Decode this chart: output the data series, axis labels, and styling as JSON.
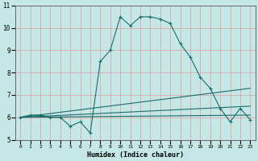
{
  "xlabel": "Humidex (Indice chaleur)",
  "bg_color": "#c5e8e6",
  "grid_color": "#dba8a8",
  "line_color": "#1a6b6b",
  "xlim": [
    -0.5,
    23.5
  ],
  "ylim": [
    5,
    11
  ],
  "yticks": [
    5,
    6,
    7,
    8,
    9,
    10,
    11
  ],
  "xticks": [
    0,
    1,
    2,
    3,
    4,
    5,
    6,
    7,
    8,
    9,
    10,
    11,
    12,
    13,
    14,
    15,
    16,
    17,
    18,
    19,
    20,
    21,
    22,
    23
  ],
  "main_series": {
    "x": [
      0,
      1,
      2,
      3,
      4,
      5,
      6,
      7,
      8,
      9,
      10,
      11,
      12,
      13,
      14,
      15,
      16,
      17,
      18,
      19,
      20,
      21,
      22,
      23
    ],
    "y": [
      6.0,
      6.1,
      6.1,
      6.0,
      6.0,
      5.6,
      5.8,
      5.3,
      8.5,
      9.0,
      10.5,
      10.1,
      10.5,
      10.5,
      10.4,
      10.2,
      9.3,
      8.7,
      7.8,
      7.3,
      6.4,
      5.8,
      6.4,
      5.9
    ]
  },
  "diag_lines": [
    {
      "x": [
        0,
        23
      ],
      "y": [
        6.0,
        7.3
      ]
    },
    {
      "x": [
        0,
        23
      ],
      "y": [
        6.0,
        6.5
      ]
    },
    {
      "x": [
        0,
        23
      ],
      "y": [
        6.0,
        6.1
      ]
    }
  ]
}
